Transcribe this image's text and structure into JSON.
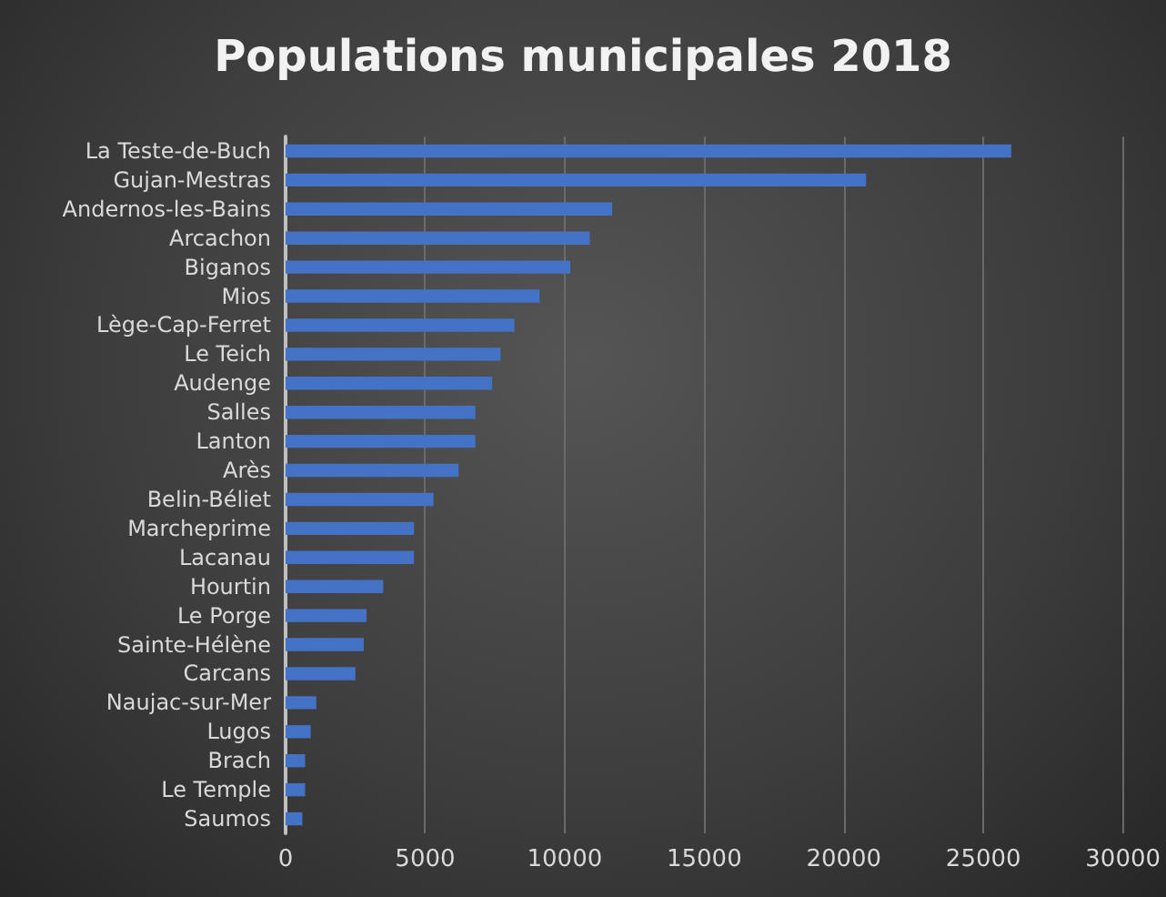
{
  "chart_data": {
    "type": "bar",
    "orientation": "horizontal",
    "title": "Populations municipales 2018",
    "categories": [
      "La Teste-de-Buch",
      "Gujan-Mestras",
      "Andernos-les-Bains",
      "Arcachon",
      "Biganos",
      "Mios",
      "Lège-Cap-Ferret",
      "Le Teich",
      "Audenge",
      "Salles",
      "Lanton",
      "Arès",
      "Belin-Béliet",
      "Marcheprime",
      "Lacanau",
      "Hourtin",
      "Le Porge",
      "Sainte-Hélène",
      "Carcans",
      "Naujac-sur-Mer",
      "Lugos",
      "Brach",
      "Le Temple",
      "Saumos"
    ],
    "values": [
      26000,
      20800,
      11700,
      10900,
      10200,
      9100,
      8200,
      7700,
      7400,
      6800,
      6800,
      6200,
      5300,
      4600,
      4600,
      3500,
      2900,
      2800,
      2500,
      1100,
      900,
      700,
      700,
      600
    ],
    "color": "#4472c4",
    "xlim": [
      0,
      30000
    ],
    "xticks": [
      0,
      5000,
      10000,
      15000,
      20000,
      25000,
      30000
    ],
    "grid": "x"
  }
}
